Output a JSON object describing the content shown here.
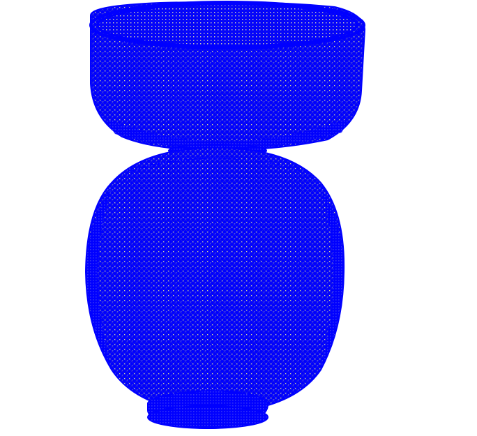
{
  "viewer": {
    "background_color": "#ffffff",
    "mesh_color": "#0000ff",
    "render_mode": "wireframe"
  },
  "model": {
    "parts": [
      {
        "name": "bowl",
        "shape": "open-cylinder-with-rounded-bottom"
      },
      {
        "name": "body",
        "shape": "sphere"
      },
      {
        "name": "base",
        "shape": "flat-foot-ring"
      }
    ]
  }
}
